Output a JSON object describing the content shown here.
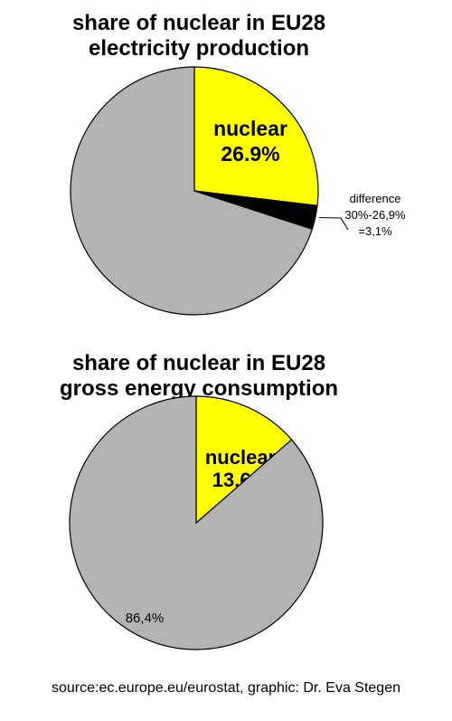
{
  "chart_data": [
    {
      "type": "pie",
      "title_lines": [
        "share of nuclear in EU28",
        "electricity production"
      ],
      "slices": [
        {
          "label_lines": [
            "nuclear",
            "26.9%"
          ],
          "value": 26.9,
          "color": "#ffff00"
        },
        {
          "label_lines": [
            "difference",
            "30%-26,9%",
            "=3,1%"
          ],
          "value": 3.1,
          "color": "#000000"
        },
        {
          "label_lines": [],
          "value": 70.0,
          "color": "#b3b3b3"
        }
      ]
    },
    {
      "type": "pie",
      "title_lines": [
        "share of nuclear in EU28",
        "gross energy consumption"
      ],
      "slices": [
        {
          "label_lines": [
            "nuclear",
            "13.6%"
          ],
          "value": 13.6,
          "color": "#ffff00"
        },
        {
          "label_lines": [
            "86,4%"
          ],
          "value": 86.4,
          "color": "#b3b3b3"
        }
      ]
    }
  ],
  "source": "source:ec.europe.eu/eurostat, graphic: Dr. Eva Stegen"
}
